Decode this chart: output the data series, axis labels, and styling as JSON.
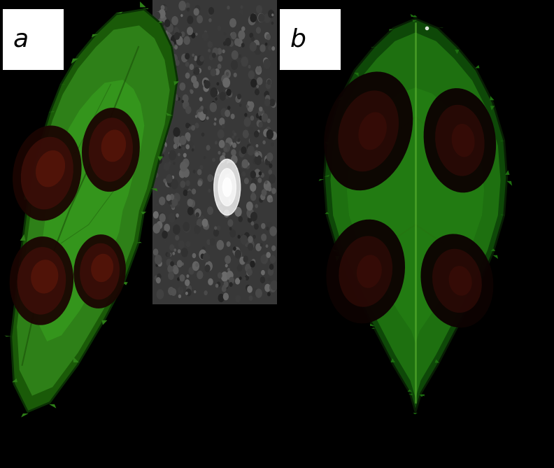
{
  "fig_width": 7.92,
  "fig_height": 6.69,
  "dpi": 100,
  "background_color": "#000000",
  "label_a": "a",
  "label_b": "b",
  "label_fontsize": 26,
  "label_color": "#000000",
  "panel_a": {
    "leaf_main": "#2a7a10",
    "leaf_bright": "#3aaa18",
    "leaf_edge": "#1a5008",
    "spot_dark": "#2a0800",
    "spot_mid": "#4a1005",
    "spot_bright": "#6a1808",
    "bg_left": "#050505",
    "bg_texture": "#404040"
  },
  "panel_b": {
    "leaf_main": "#1e6e0e",
    "leaf_bright": "#2a9018",
    "leaf_dark": "#0a3a05",
    "spot_dark": "#1a0500",
    "spot_mid": "#3a0e08",
    "bg": "#030303"
  }
}
